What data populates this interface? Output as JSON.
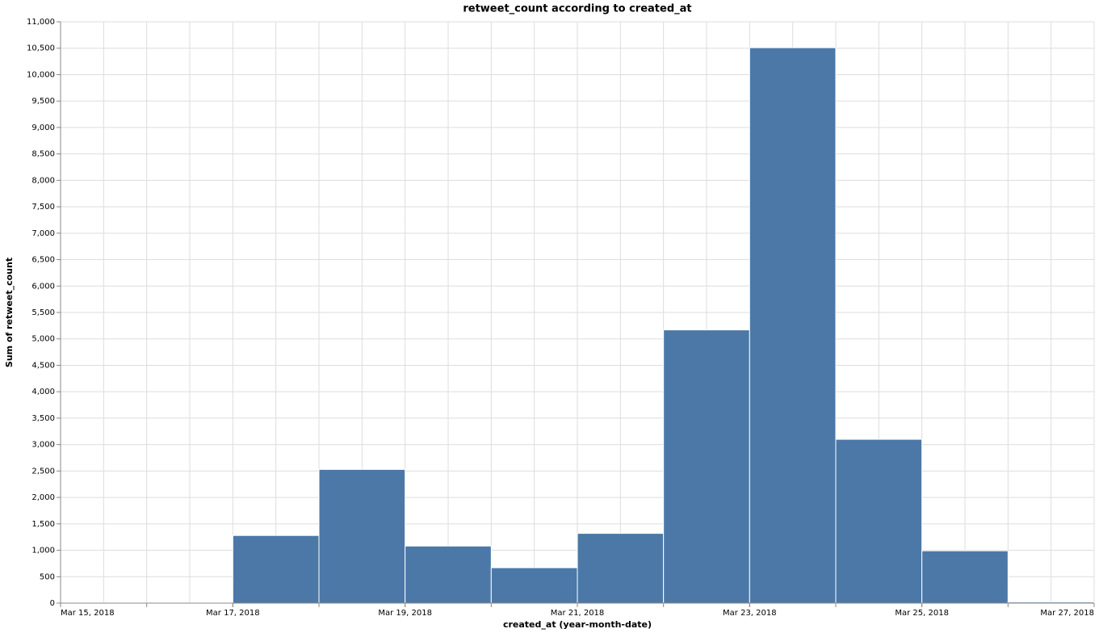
{
  "chart_data": {
    "type": "histogram",
    "title": "retweet_count according to created_at",
    "x_label": "created_at (year-month-date)",
    "y_label": "Sum of retweet_count",
    "bins": [
      "2018-03-15",
      "2018-03-16",
      "2018-03-17",
      "2018-03-18",
      "2018-03-19",
      "2018-03-20",
      "2018-03-21",
      "2018-03-22",
      "2018-03-23",
      "2018-03-24",
      "2018-03-25",
      "2018-03-26",
      "2018-03-27"
    ],
    "values": [
      10,
      10,
      1280,
      2530,
      1080,
      670,
      1320,
      5170,
      10510,
      3100,
      990,
      20
    ],
    "color": "#4c78a8",
    "xlim": [
      "2018-03-15",
      "2018-03-27"
    ],
    "xticks": [
      {
        "value": "2018-03-15",
        "label": "Mar 15, 2018"
      },
      {
        "value": "2018-03-17",
        "label": "Mar 17, 2018"
      },
      {
        "value": "2018-03-19",
        "label": "Mar 19, 2018"
      },
      {
        "value": "2018-03-21",
        "label": "Mar 21, 2018"
      },
      {
        "value": "2018-03-23",
        "label": "Mar 23, 2018"
      },
      {
        "value": "2018-03-25",
        "label": "Mar 25, 2018"
      },
      {
        "value": "2018-03-27",
        "label": "Mar 27, 2018"
      }
    ],
    "ylim": [
      0,
      11000
    ],
    "yticks": [
      0,
      500,
      {
        "value": 1000,
        "label": "1,000"
      },
      {
        "value": 1500,
        "label": "1,500"
      },
      {
        "value": 2000,
        "label": "2,000"
      },
      {
        "value": 2500,
        "label": "2,500"
      },
      {
        "value": 3000,
        "label": "3,000"
      },
      {
        "value": 3500,
        "label": "3,500"
      },
      {
        "value": 4000,
        "label": "4,000"
      },
      {
        "value": 4500,
        "label": "4,500"
      },
      {
        "value": 5000,
        "label": "5,000"
      },
      {
        "value": 5500,
        "label": "5,500"
      },
      {
        "value": 6000,
        "label": "6,000"
      },
      {
        "value": 6500,
        "label": "6,500"
      },
      {
        "value": 7000,
        "label": "7,000"
      },
      {
        "value": 7500,
        "label": "7,500"
      },
      {
        "value": 8000,
        "label": "8,000"
      },
      {
        "value": 8500,
        "label": "8,500"
      },
      {
        "value": 9000,
        "label": "9,000"
      },
      {
        "value": 9500,
        "label": "9,500"
      },
      {
        "value": 10000,
        "label": "10,000"
      },
      {
        "value": 10500,
        "label": "10,500"
      },
      {
        "value": 11000,
        "label": "11,000"
      }
    ],
    "grid": true
  }
}
